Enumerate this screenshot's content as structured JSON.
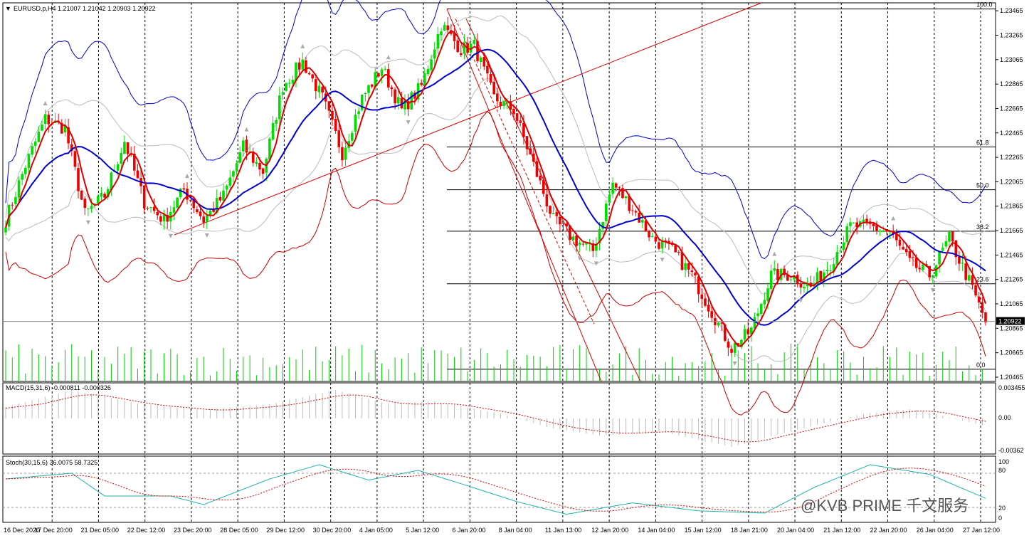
{
  "window": {
    "symbol_line": "EURUSD.p,H4  1.21007 1.21042 1.20903 1.20922",
    "current_price": "1.20922",
    "watermark": "@KVB PRIME 千文服务"
  },
  "colors": {
    "bull": "#00dd00",
    "bear": "#ee0000",
    "bollinger_outer_upper": "#0000cc",
    "bollinger_outer_lower": "#cc0000",
    "ma_fast": "#dd0000",
    "ma_slow": "#0000cc",
    "envelope": "#bbbbbb",
    "volume": "#00cc00",
    "trendline": "#dd0000"
  },
  "price_axis": {
    "ticks": [
      "1.23465",
      "1.23265",
      "1.23065",
      "1.22865",
      "1.22665",
      "1.22465",
      "1.22265",
      "1.22065",
      "1.21865",
      "1.21665",
      "1.21465",
      "1.21265",
      "1.21065",
      "1.20865",
      "1.20665",
      "1.20465"
    ]
  },
  "time_axis": {
    "labels": [
      "16 Dec 2020",
      "17 Dec 20:00",
      "21 Dec 05:00",
      "22 Dec 12:00",
      "23 Dec 20:00",
      "28 Dec 05:00",
      "29 Dec 12:00",
      "30 Dec 20:00",
      "4 Jan 05:00",
      "5 Jan 12:00",
      "6 Jan 20:00",
      "8 Jan 04:00",
      "11 Jan 13:00",
      "12 Jan 20:00",
      "14 Jan 04:00",
      "15 Jan 12:00",
      "18 Jan 21:00",
      "20 Jan 04:00",
      "21 Jan 12:00",
      "22 Jan 20:00",
      "26 Jan 04:00",
      "27 Jan 12:00"
    ]
  },
  "fibonacci": [
    {
      "label": "100.0",
      "price": 1.2348
    },
    {
      "label": "61.8",
      "price": 1.2235
    },
    {
      "label": "50.0",
      "price": 1.22
    },
    {
      "label": "38.2",
      "price": 1.2166
    },
    {
      "label": "23.6",
      "price": 1.2123
    },
    {
      "label": "0.0",
      "price": 1.2053
    }
  ],
  "macd": {
    "label": "MACD(15,31,6) -0.000811 -0.000326",
    "ticks": [
      "0.003455",
      "0.00",
      "-0.00362"
    ]
  },
  "stoch": {
    "label": "Stoch(30,15,6) 36.0075 58.7325",
    "ticks": [
      "100",
      "80",
      "20",
      "0"
    ]
  },
  "chart_data": {
    "type": "candlestick",
    "symbol": "EURUSD.p",
    "timeframe": "H4",
    "ylim": [
      1.2043,
      1.2353
    ],
    "anchors": [
      [
        0,
        1.2175
      ],
      [
        6,
        1.222
      ],
      [
        12,
        1.2258
      ],
      [
        18,
        1.225
      ],
      [
        24,
        1.218
      ],
      [
        30,
        1.2195
      ],
      [
        36,
        1.224
      ],
      [
        42,
        1.219
      ],
      [
        48,
        1.2175
      ],
      [
        54,
        1.22
      ],
      [
        60,
        1.2175
      ],
      [
        66,
        1.2195
      ],
      [
        72,
        1.2235
      ],
      [
        78,
        1.2215
      ],
      [
        84,
        1.2285
      ],
      [
        90,
        1.2305
      ],
      [
        96,
        1.2275
      ],
      [
        102,
        1.223
      ],
      [
        108,
        1.2275
      ],
      [
        114,
        1.23
      ],
      [
        120,
        1.2265
      ],
      [
        126,
        1.2285
      ],
      [
        132,
        1.2335
      ],
      [
        138,
        1.2315
      ],
      [
        142,
        1.2318
      ],
      [
        148,
        1.2275
      ],
      [
        154,
        1.2265
      ],
      [
        160,
        1.222
      ],
      [
        166,
        1.2175
      ],
      [
        172,
        1.216
      ],
      [
        178,
        1.215
      ],
      [
        184,
        1.2205
      ],
      [
        190,
        1.2185
      ],
      [
        196,
        1.216
      ],
      [
        202,
        1.215
      ],
      [
        208,
        1.213
      ],
      [
        214,
        1.21
      ],
      [
        220,
        1.207
      ],
      [
        226,
        1.2085
      ],
      [
        232,
        1.213
      ],
      [
        238,
        1.213
      ],
      [
        244,
        1.212
      ],
      [
        250,
        1.214
      ],
      [
        256,
        1.217
      ],
      [
        262,
        1.217
      ],
      [
        268,
        1.2165
      ],
      [
        274,
        1.214
      ],
      [
        280,
        1.213
      ],
      [
        286,
        1.216
      ],
      [
        292,
        1.2125
      ],
      [
        297,
        1.2092
      ]
    ],
    "macd_histogram_anchors": [
      [
        0,
        0.0012
      ],
      [
        20,
        0.003
      ],
      [
        40,
        0.0016
      ],
      [
        60,
        0.0009
      ],
      [
        80,
        0.0015
      ],
      [
        100,
        0.003
      ],
      [
        115,
        0.0016
      ],
      [
        130,
        0.0018
      ],
      [
        150,
        0.0005
      ],
      [
        165,
        -0.001
      ],
      [
        180,
        -0.0018
      ],
      [
        200,
        -0.0015
      ],
      [
        220,
        -0.003
      ],
      [
        240,
        -0.0012
      ],
      [
        260,
        0.0005
      ],
      [
        275,
        0.001
      ],
      [
        297,
        -0.0008
      ]
    ],
    "stoch_anchors": [
      [
        0,
        70
      ],
      [
        20,
        80
      ],
      [
        30,
        40
      ],
      [
        50,
        40
      ],
      [
        60,
        25
      ],
      [
        80,
        70
      ],
      [
        95,
        95
      ],
      [
        110,
        68
      ],
      [
        125,
        85
      ],
      [
        140,
        58
      ],
      [
        155,
        30
      ],
      [
        170,
        8
      ],
      [
        190,
        28
      ],
      [
        210,
        14
      ],
      [
        230,
        10
      ],
      [
        245,
        55
      ],
      [
        262,
        95
      ],
      [
        280,
        78
      ],
      [
        297,
        36
      ]
    ]
  }
}
